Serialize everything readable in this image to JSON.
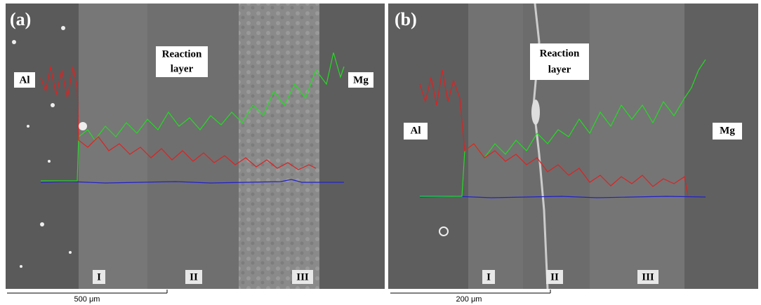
{
  "panel_a": {
    "panel_label": "(a)",
    "al_label": "Al",
    "mg_label": "Mg",
    "reaction_layer": [
      "Reaction",
      "layer"
    ],
    "zones": [
      "I",
      "II",
      "III"
    ],
    "scale_bar": "500 μm"
  },
  "panel_b": {
    "panel_label": "(b)",
    "al_label": "Al",
    "mg_label": "Mg",
    "reaction_layer": [
      "Reaction",
      "layer"
    ],
    "zones": [
      "I",
      "II",
      "III"
    ],
    "scale_bar": "200 μm"
  }
}
